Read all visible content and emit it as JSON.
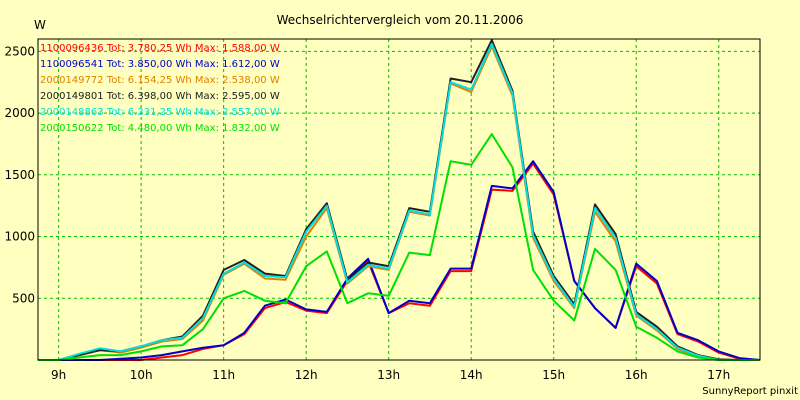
{
  "chart_data": {
    "type": "line",
    "title": "Wechselrichtervergleich vom 20.11.2006",
    "ylabel": "W",
    "footer": "SunnyReport pinxit",
    "x_start": 8.75,
    "x_step": 0.25,
    "xlim": [
      8.75,
      17.5
    ],
    "ylim": [
      0,
      2600
    ],
    "yticks": [
      500,
      1000,
      1500,
      2000,
      2500
    ],
    "xticks": [
      9,
      10,
      11,
      12,
      13,
      14,
      15,
      16,
      17
    ],
    "xtick_labels": [
      "9h",
      "10h",
      "11h",
      "12h",
      "13h",
      "14h",
      "15h",
      "16h",
      "17h"
    ],
    "grid": true,
    "legend_position": "top-left",
    "series": [
      {
        "name": "1100096436 Tot: 3.780,25 Wh Max: 1.588,00 W",
        "color": "#ff0000",
        "values": [
          0,
          0,
          0,
          0,
          0,
          0,
          20,
          40,
          90,
          120,
          210,
          420,
          470,
          400,
          380,
          640,
          800,
          380,
          460,
          440,
          720,
          720,
          1380,
          1370,
          1590,
          1340,
          640,
          420,
          260,
          760,
          620,
          210,
          150,
          60,
          10,
          0
        ]
      },
      {
        "name": "1100096541 Tot: 3.850,00 Wh Max: 1.612,00 W",
        "color": "#0000cc",
        "values": [
          0,
          0,
          0,
          0,
          10,
          20,
          40,
          70,
          100,
          120,
          220,
          440,
          490,
          410,
          390,
          660,
          820,
          380,
          480,
          460,
          740,
          740,
          1410,
          1390,
          1610,
          1360,
          640,
          420,
          260,
          780,
          640,
          220,
          160,
          70,
          15,
          0
        ]
      },
      {
        "name": "2000149772 Tot: 6.154,25 Wh Max: 2.538,00 W",
        "color": "#e08000",
        "values": [
          0,
          0,
          40,
          80,
          60,
          100,
          150,
          170,
          320,
          690,
          780,
          660,
          650,
          1000,
          1230,
          620,
          760,
          730,
          1200,
          1170,
          2240,
          2170,
          2540,
          2140,
          990,
          640,
          420,
          1200,
          960,
          360,
          240,
          90,
          30,
          0,
          0,
          0
        ]
      },
      {
        "name": "2000149801 Tot: 6.398,00 Wh Max: 2.595,00 W",
        "color": "#202020",
        "values": [
          0,
          0,
          40,
          80,
          70,
          110,
          160,
          190,
          360,
          730,
          810,
          700,
          680,
          1060,
          1270,
          650,
          790,
          760,
          1230,
          1200,
          2280,
          2250,
          2590,
          2180,
          1040,
          680,
          450,
          1260,
          1020,
          390,
          270,
          110,
          40,
          5,
          0,
          0
        ]
      },
      {
        "name": "2000148863 Tot: 6.231,25 Wh Max: 2.557,00 W",
        "color": "#00e0e0",
        "values": [
          0,
          0,
          50,
          95,
          70,
          110,
          160,
          180,
          340,
          700,
          790,
          680,
          670,
          1040,
          1250,
          630,
          770,
          740,
          1210,
          1180,
          2250,
          2190,
          2560,
          2160,
          1010,
          660,
          430,
          1230,
          990,
          370,
          250,
          100,
          35,
          0,
          0,
          0
        ]
      },
      {
        "name": "2000150622 Tot: 4.480,00 Wh Max: 1.832,00 W",
        "color": "#00e000",
        "values": [
          0,
          0,
          20,
          40,
          40,
          70,
          110,
          120,
          250,
          500,
          560,
          480,
          460,
          760,
          880,
          460,
          540,
          520,
          870,
          850,
          1610,
          1580,
          1830,
          1560,
          730,
          480,
          320,
          900,
          730,
          270,
          180,
          70,
          20,
          0,
          0,
          0
        ]
      }
    ]
  }
}
